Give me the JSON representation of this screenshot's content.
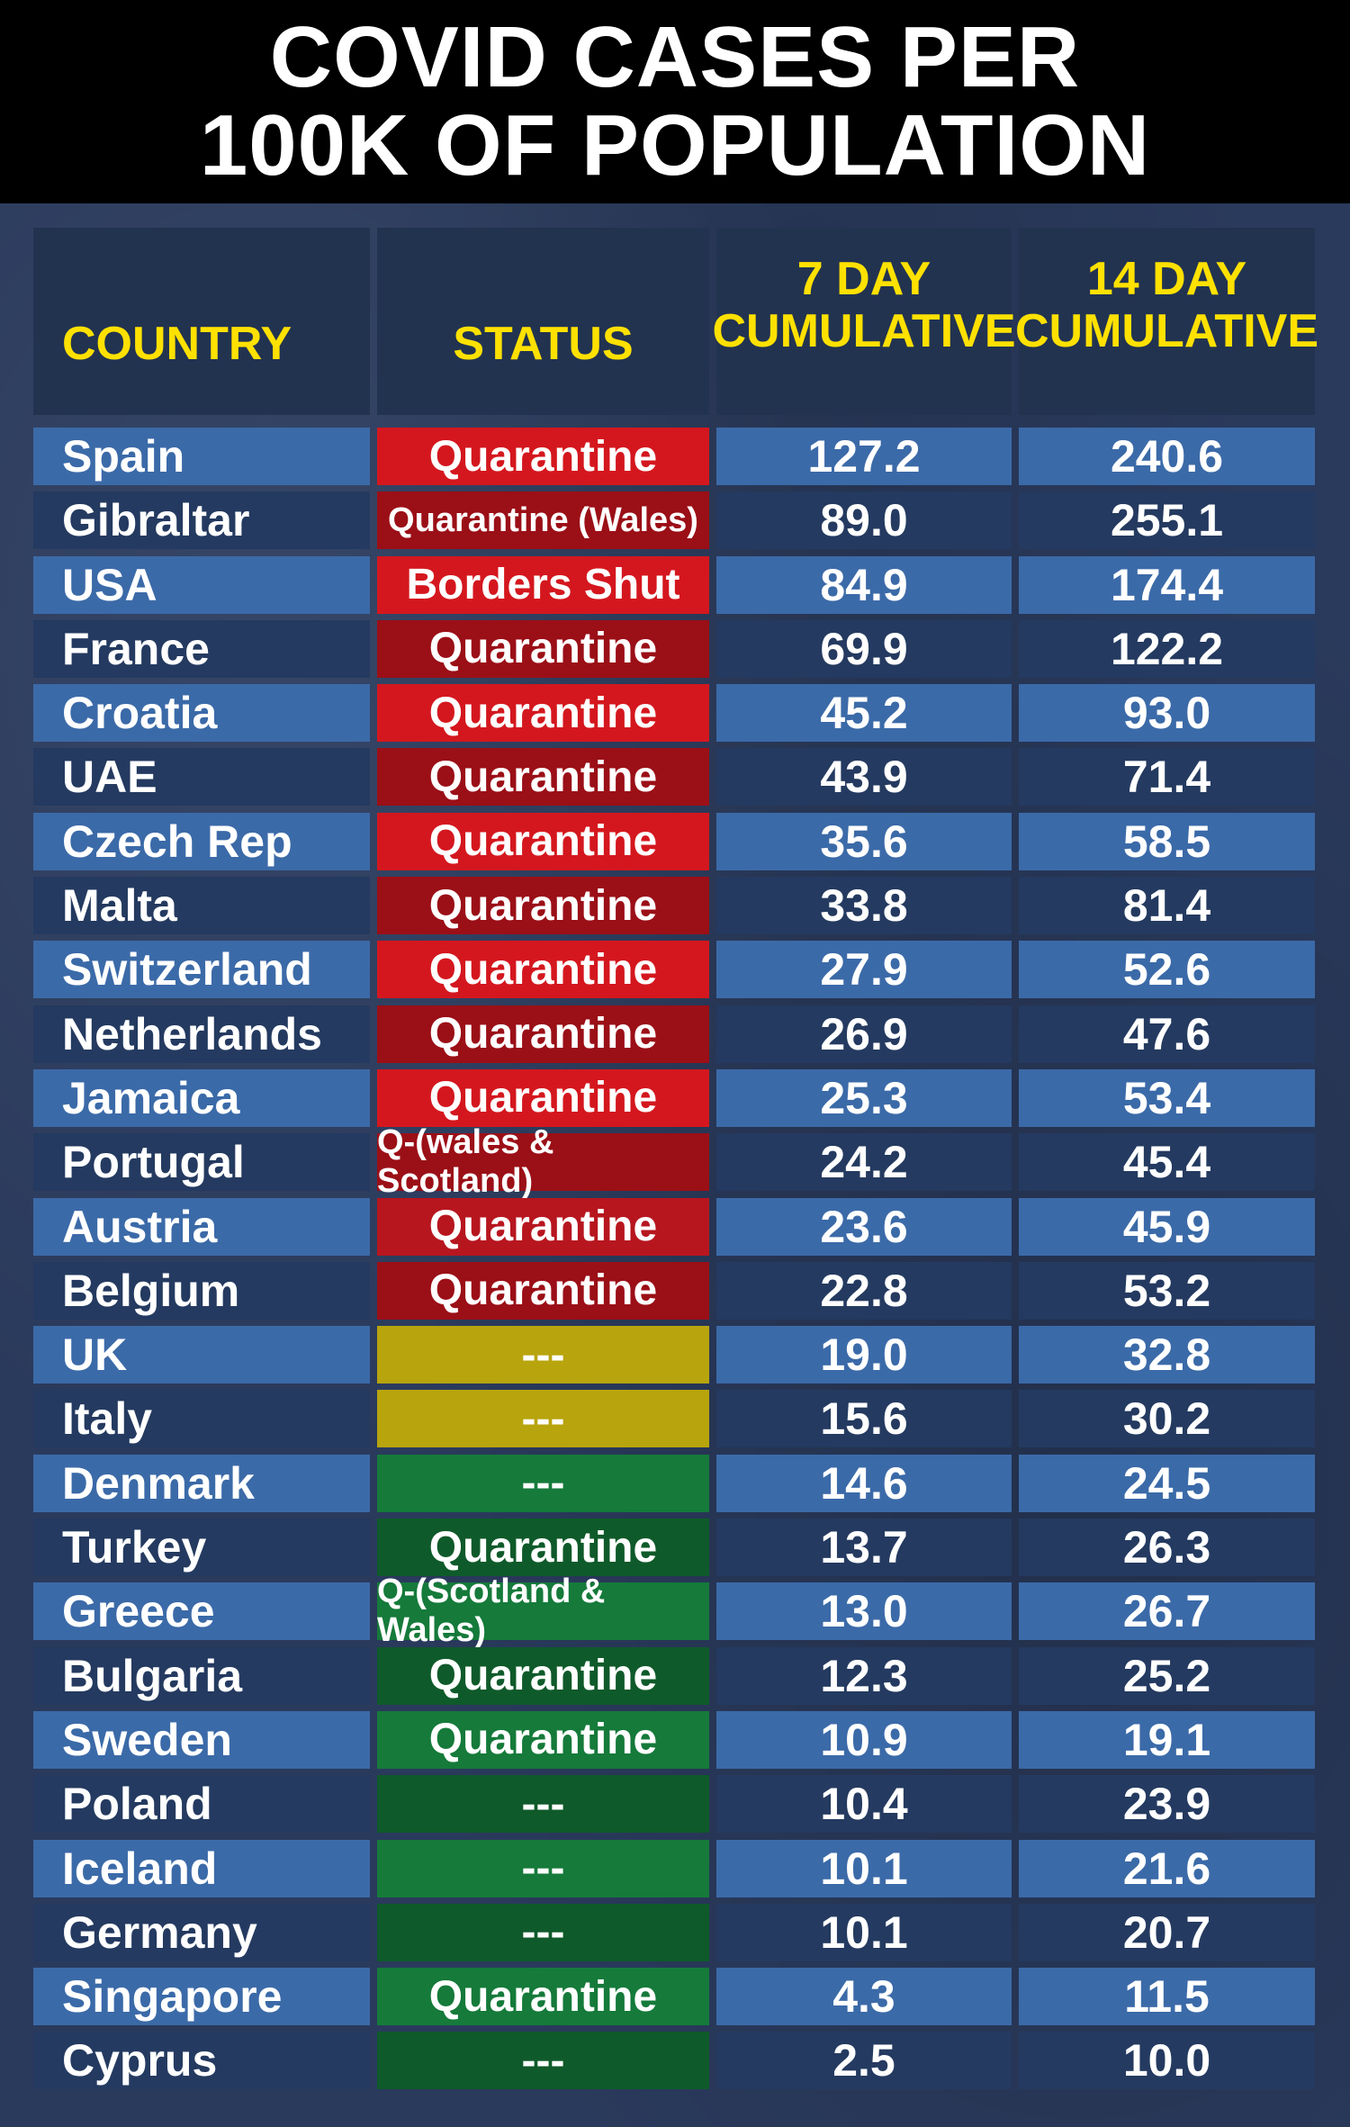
{
  "title": {
    "line1": "COVID CASES PER",
    "line2": "100K OF POPULATION"
  },
  "headers": {
    "country": "COUNTRY",
    "status": "STATUS",
    "seven_day": [
      "7 DAY",
      "CUMULATIVE"
    ],
    "fourteen_day": [
      "14 DAY",
      "CUMULATIVE"
    ]
  },
  "colors": {
    "red_bright": "#d4171e",
    "red_dark": "#9b0f17",
    "red_mid": "#b7161f",
    "yellow": "#b8a40d",
    "green": "#157a3a",
    "green_dark": "#0f5a2a",
    "header_text": "#ffe100"
  },
  "chart_data": {
    "type": "table",
    "title": "COVID CASES PER 100K OF POPULATION",
    "columns": [
      "COUNTRY",
      "STATUS",
      "7 DAY CUMULATIVE",
      "14 DAY CUMULATIVE"
    ],
    "rows": [
      {
        "country": "Spain",
        "status": "Quarantine",
        "seven": "127.2",
        "fourteen": "240.6",
        "status_color": "red_bright"
      },
      {
        "country": "Gibraltar",
        "status": "Quarantine (Wales)",
        "seven": "89.0",
        "fourteen": "255.1",
        "status_color": "red_dark",
        "small": true
      },
      {
        "country": "USA",
        "status": "Borders Shut",
        "seven": "84.9",
        "fourteen": "174.4",
        "status_color": "red_bright"
      },
      {
        "country": "France",
        "status": "Quarantine",
        "seven": "69.9",
        "fourteen": "122.2",
        "status_color": "red_dark"
      },
      {
        "country": "Croatia",
        "status": "Quarantine",
        "seven": "45.2",
        "fourteen": "93.0",
        "status_color": "red_bright"
      },
      {
        "country": "UAE",
        "status": "Quarantine",
        "seven": "43.9",
        "fourteen": "71.4",
        "status_color": "red_dark"
      },
      {
        "country": "Czech Rep",
        "status": "Quarantine",
        "seven": "35.6",
        "fourteen": "58.5",
        "status_color": "red_bright"
      },
      {
        "country": "Malta",
        "status": "Quarantine",
        "seven": "33.8",
        "fourteen": "81.4",
        "status_color": "red_dark"
      },
      {
        "country": "Switzerland",
        "status": "Quarantine",
        "seven": "27.9",
        "fourteen": "52.6",
        "status_color": "red_bright"
      },
      {
        "country": "Netherlands",
        "status": "Quarantine",
        "seven": "26.9",
        "fourteen": "47.6",
        "status_color": "red_dark"
      },
      {
        "country": "Jamaica",
        "status": "Quarantine",
        "seven": "25.3",
        "fourteen": "53.4",
        "status_color": "red_bright"
      },
      {
        "country": "Portugal",
        "status": "Q-(wales & Scotland)",
        "seven": "24.2",
        "fourteen": "45.4",
        "status_color": "red_dark",
        "small": true
      },
      {
        "country": "Austria",
        "status": "Quarantine",
        "seven": "23.6",
        "fourteen": "45.9",
        "status_color": "red_mid"
      },
      {
        "country": "Belgium",
        "status": "Quarantine",
        "seven": "22.8",
        "fourteen": "53.2",
        "status_color": "red_dark"
      },
      {
        "country": "UK",
        "status": "---",
        "seven": "19.0",
        "fourteen": "32.8",
        "status_color": "yellow"
      },
      {
        "country": "Italy",
        "status": "---",
        "seven": "15.6",
        "fourteen": "30.2",
        "status_color": "yellow"
      },
      {
        "country": "Denmark",
        "status": "---",
        "seven": "14.6",
        "fourteen": "24.5",
        "status_color": "green"
      },
      {
        "country": "Turkey",
        "status": "Quarantine",
        "seven": "13.7",
        "fourteen": "26.3",
        "status_color": "green_dark"
      },
      {
        "country": "Greece",
        "status": "Q-(Scotland & Wales)",
        "seven": "13.0",
        "fourteen": "26.7",
        "status_color": "green",
        "small": true
      },
      {
        "country": "Bulgaria",
        "status": "Quarantine",
        "seven": "12.3",
        "fourteen": "25.2",
        "status_color": "green_dark"
      },
      {
        "country": "Sweden",
        "status": "Quarantine",
        "seven": "10.9",
        "fourteen": "19.1",
        "status_color": "green"
      },
      {
        "country": "Poland",
        "status": "---",
        "seven": "10.4",
        "fourteen": "23.9",
        "status_color": "green_dark"
      },
      {
        "country": "Iceland",
        "status": "---",
        "seven": "10.1",
        "fourteen": "21.6",
        "status_color": "green"
      },
      {
        "country": "Germany",
        "status": "---",
        "seven": "10.1",
        "fourteen": "20.7",
        "status_color": "green_dark"
      },
      {
        "country": "Singapore",
        "status": "Quarantine",
        "seven": "4.3",
        "fourteen": "11.5",
        "status_color": "green"
      },
      {
        "country": "Cyprus",
        "status": "---",
        "seven": "2.5",
        "fourteen": "10.0",
        "status_color": "green_dark"
      }
    ]
  }
}
